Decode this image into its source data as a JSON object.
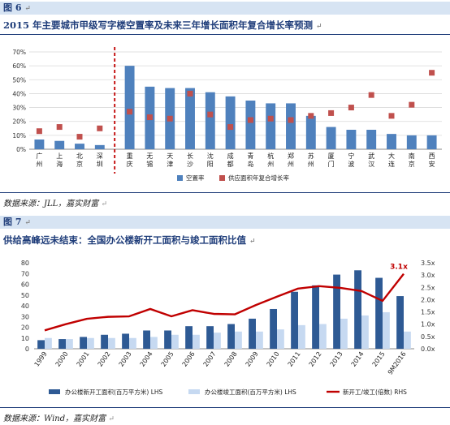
{
  "fig6": {
    "label": "图 6",
    "title": "2015 年主要城市甲级写字楼空置率及未来三年增长面积年复合增长率预测",
    "source": "数据来源：JLL，嘉实财富",
    "mark": "↵"
  },
  "fig7": {
    "label": "图 7",
    "title": "供给高峰远未结束：全国办公楼新开工面积与竣工面积比值",
    "source": "数据来源：Wind，嘉实财富",
    "mark": "↵"
  },
  "chart_data": [
    {
      "type": "bar",
      "categories": [
        "广州",
        "上海",
        "北京",
        "深圳",
        "重庆",
        "无锡",
        "天津",
        "长沙",
        "沈阳",
        "成都",
        "青岛",
        "杭州",
        "郑州",
        "苏州",
        "厦门",
        "宁波",
        "武汉",
        "大连",
        "南京",
        "西安"
      ],
      "category_labels": [
        "广\n州",
        "上\n海",
        "北\n京",
        "深\n圳",
        "重\n庆",
        "无\n锡",
        "天\n津",
        "长\n沙",
        "沈\n阳",
        "成\n都",
        "青\n岛",
        "杭\n州",
        "郑\n州",
        "苏\n州",
        "厦\n门",
        "宁\n波",
        "武\n汉",
        "大\n连",
        "南\n京",
        "西\n安"
      ],
      "series": [
        {
          "name": "空置率",
          "kind": "bar",
          "color": "#4f81bd",
          "values": [
            7,
            6,
            4,
            3,
            60,
            45,
            44,
            44,
            41,
            38,
            35,
            33,
            33,
            24,
            16,
            14,
            14,
            11,
            10,
            10
          ]
        },
        {
          "name": "供应面积年复合增长率",
          "kind": "marker",
          "color": "#c0504d",
          "values": [
            13,
            16,
            9,
            15,
            27,
            23,
            22,
            40,
            25,
            16,
            21,
            22,
            21,
            24,
            26,
            30,
            39,
            24,
            32,
            55
          ]
        }
      ],
      "ylim": [
        0,
        70
      ],
      "yticks": [
        "0%",
        "10%",
        "20%",
        "30%",
        "40%",
        "50%",
        "60%",
        "70%"
      ],
      "separator_after": "深圳",
      "legend": "bottom"
    },
    {
      "type": "bar",
      "categories": [
        "1999",
        "2000",
        "2001",
        "2002",
        "2003",
        "2004",
        "2005",
        "2006",
        "2007",
        "2008",
        "2009",
        "2010",
        "2011",
        "2012",
        "2013",
        "2014",
        "2015",
        "9M2016"
      ],
      "series": [
        {
          "name": "办公楼新开工面积(百万平方米) LHS",
          "kind": "bar",
          "axis": "left",
          "color": "#2e5a94",
          "values": [
            8,
            9,
            11,
            13,
            14,
            17,
            17,
            21,
            21,
            23,
            28,
            37,
            53,
            59,
            69,
            73,
            66,
            49
          ]
        },
        {
          "name": "办公楼竣工面积(百万平方米) LHS",
          "kind": "bar",
          "axis": "left",
          "color": "#c6d9f1",
          "values": [
            10,
            9,
            10,
            10,
            10,
            11,
            13,
            13,
            15,
            16,
            16,
            18,
            22,
            23,
            28,
            31,
            34,
            16
          ]
        },
        {
          "name": "新开工/竣工(倍数) RHS",
          "kind": "line",
          "axis": "right",
          "color": "#c00000",
          "values": [
            0.75,
            1.0,
            1.22,
            1.3,
            1.32,
            1.62,
            1.32,
            1.57,
            1.42,
            1.4,
            1.78,
            2.12,
            2.45,
            2.55,
            2.48,
            2.35,
            1.95,
            3.05
          ]
        }
      ],
      "ylim": [
        0,
        80
      ],
      "yticks": [
        "0",
        "10",
        "20",
        "30",
        "40",
        "50",
        "60",
        "70",
        "80"
      ],
      "y2lim": [
        0,
        3.5
      ],
      "y2ticks": [
        "0.0x",
        "0.5x",
        "1.0x",
        "1.5x",
        "2.0x",
        "2.5x",
        "3.0x",
        "3.5x"
      ],
      "annotation": "3.1x",
      "legend": "bottom"
    }
  ]
}
